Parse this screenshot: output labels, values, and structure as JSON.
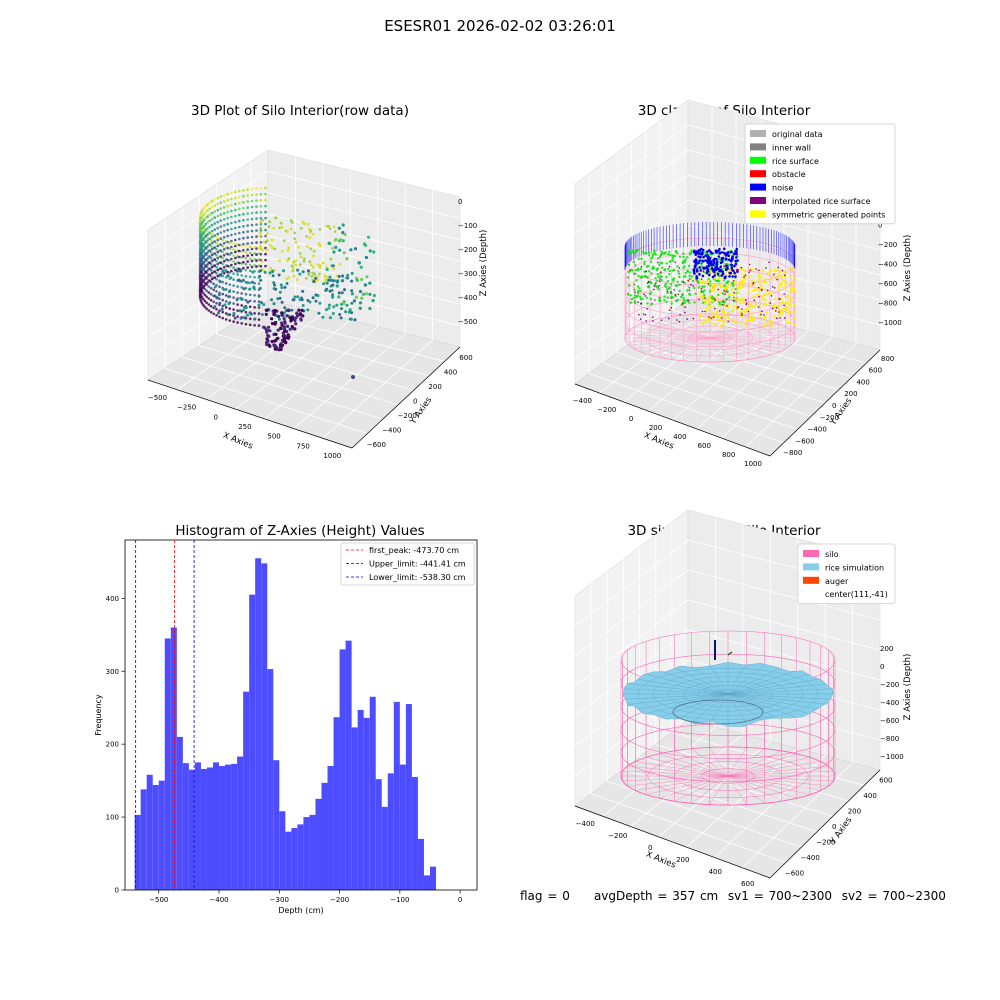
{
  "suptitle": "ESESR01 2026-02-02 03:26:01",
  "status": {
    "flag": "flag = 0",
    "avg_depth": "avgDepth = 357 cm",
    "sv1": "sv1 = 700~2300",
    "sv2": "sv2 = 700~2300"
  },
  "colors": {
    "hist_bar": "#4d4dff",
    "first_peak_line": "#ff0000",
    "limit_line": "#0000cc",
    "silo": "#ff69b4",
    "rice_simulation": "#87ceeb",
    "auger": "#ff4500",
    "original_data": "#b0b0b0",
    "inner_wall": "#808080",
    "rice_surface": "#00ff00",
    "obstacle": "#ff0000",
    "noise": "#0000ff",
    "interpolated": "#800080",
    "symmetric": "#ffff00"
  },
  "chart_data": [
    {
      "type": "scatter",
      "projection": "3d",
      "colormap": "viridis",
      "title": "3D Plot of Silo Interior(row data)",
      "xlabel": "X Axies",
      "ylabel": "Y Axies",
      "zlabel": "Z Axies (Depth)",
      "xticks": [
        "−500",
        "−250",
        "0",
        "250",
        "500",
        "750",
        "1000"
      ],
      "yticks": [
        "−600",
        "−400",
        "−200",
        "0",
        "200",
        "400",
        "600"
      ],
      "zticks": [
        "−500",
        "−400",
        "−300",
        "−200",
        "−100",
        "0"
      ]
    },
    {
      "type": "scatter",
      "projection": "3d",
      "title": "3D classify of Silo Interior",
      "xlabel": "X Axies",
      "ylabel": "Y Axies",
      "zlabel": "Z Axies (Depth)",
      "xticks": [
        "−400",
        "−200",
        "0",
        "200",
        "400",
        "600",
        "800",
        "1000"
      ],
      "yticks": [
        "−800",
        "−600",
        "−400",
        "−200",
        "0",
        "200",
        "400",
        "600",
        "800"
      ],
      "zticks": [
        "−1000",
        "−800",
        "−600",
        "−400",
        "−200",
        "0",
        "200"
      ],
      "legend": {
        "position": "upper-right",
        "entries": [
          {
            "label": "original data",
            "color": "#b0b0b0"
          },
          {
            "label": "inner wall",
            "color": "#808080"
          },
          {
            "label": "rice surface",
            "color": "#00ff00"
          },
          {
            "label": "obstacle",
            "color": "#ff0000"
          },
          {
            "label": "noise",
            "color": "#0000ff"
          },
          {
            "label": "interpolated rice surface",
            "color": "#800080"
          },
          {
            "label": "symmetric generated points",
            "color": "#ffff00"
          }
        ]
      }
    },
    {
      "type": "bar",
      "title": "Histogram of Z-Axies (Height) Values",
      "xlabel": "Depth (cm)",
      "ylabel": "Frequency",
      "xlim": [
        -556,
        28
      ],
      "ylim": [
        0,
        480
      ],
      "bin_width": 10,
      "bin_start": -540,
      "values": [
        103,
        138,
        158,
        144,
        150,
        345,
        360,
        210,
        174,
        165,
        175,
        166,
        168,
        175,
        170,
        172,
        173,
        183,
        272,
        405,
        455,
        448,
        303,
        178,
        108,
        80,
        85,
        90,
        100,
        103,
        125,
        147,
        170,
        237,
        330,
        342,
        223,
        247,
        236,
        265,
        152,
        114,
        160,
        258,
        172,
        255,
        155,
        70,
        20,
        32
      ],
      "xticks": [
        -500,
        -400,
        -300,
        -200,
        -100,
        0
      ],
      "yticks": [
        0,
        100,
        200,
        300,
        400
      ],
      "xtick_labels": [
        "−500",
        "−400",
        "−300",
        "−200",
        "−100",
        "0"
      ],
      "ytick_labels": [
        "0",
        "100",
        "200",
        "300",
        "400"
      ],
      "vlines": [
        {
          "x": -473.7,
          "label": "first_peak: -473.70 cm",
          "color": "#ff0000",
          "style": "dashed"
        },
        {
          "x": -441.41,
          "label": "Upper_limit: -441.41 cm",
          "color": "#0000cc",
          "style": "dashed"
        },
        {
          "x": -538.3,
          "label": "Lower_limit: -538.30 cm",
          "color": "#0000cc",
          "style": "dashed"
        }
      ],
      "legend": {
        "position": "upper-right"
      }
    },
    {
      "type": "surface",
      "projection": "3d",
      "title": "3D simulation of Silo Interior",
      "xlabel": "X Axies",
      "ylabel": "Y Axies",
      "zlabel": "Z Axies (Depth)",
      "xticks": [
        "−400",
        "−200",
        "0",
        "200",
        "400",
        "600"
      ],
      "yticks": [
        "−600",
        "−400",
        "−200",
        "0",
        "200",
        "400",
        "600"
      ],
      "zticks": [
        "−1000",
        "−800",
        "−600",
        "−400",
        "−200",
        "0",
        "200"
      ],
      "legend": {
        "position": "upper-right",
        "entries": [
          {
            "label": "silo",
            "color": "#ff69b4"
          },
          {
            "label": "rice simulation",
            "color": "#87ceeb"
          },
          {
            "label": "auger",
            "color": "#ff4500"
          },
          {
            "label": "center(111,-41)",
            "color": ""
          }
        ]
      }
    }
  ]
}
